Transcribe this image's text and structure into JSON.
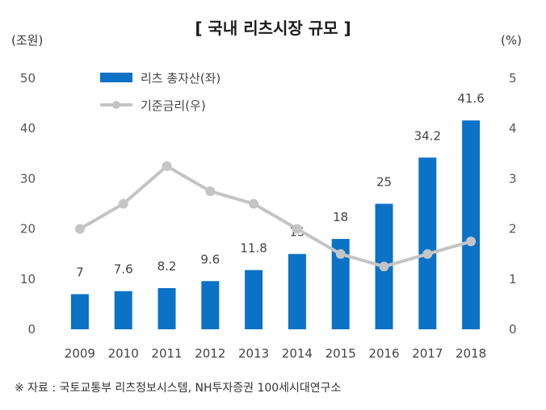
{
  "chart_data": {
    "type": "bar",
    "title": "[ 국내 리츠시장 규모 ]",
    "left_unit": "(조원)",
    "right_unit": "(%)",
    "categories": [
      "2009",
      "2010",
      "2011",
      "2012",
      "2013",
      "2014",
      "2015",
      "2016",
      "2017",
      "2018"
    ],
    "series": [
      {
        "name": "리츠 총자산(좌)",
        "type": "bar",
        "axis": "left",
        "color": "#0b72c6",
        "values": [
          7,
          7.6,
          8.2,
          9.6,
          11.8,
          15,
          18,
          25,
          34.2,
          41.6
        ],
        "labels": [
          "7",
          "7.6",
          "8.2",
          "9.6",
          "11.8",
          "15",
          "18",
          "25",
          "34.2",
          "41.6"
        ]
      },
      {
        "name": "기준금리(우)",
        "type": "line",
        "axis": "right",
        "color": "#c4c4c4",
        "values": [
          2.0,
          2.5,
          3.25,
          2.75,
          2.5,
          2.0,
          1.5,
          1.25,
          1.5,
          1.75
        ]
      }
    ],
    "ylim_left": [
      0,
      50
    ],
    "ylim_right": [
      0,
      5
    ],
    "yticks_left": [
      "0",
      "10",
      "20",
      "30",
      "40",
      "50"
    ],
    "yticks_right": [
      "0",
      "1",
      "2",
      "3",
      "4",
      "5"
    ],
    "grid": false,
    "legend": "top-left"
  },
  "source_text": "※ 자료 : 국토교통부 리츠정보시스템, NH투자증권 100세시대연구소"
}
